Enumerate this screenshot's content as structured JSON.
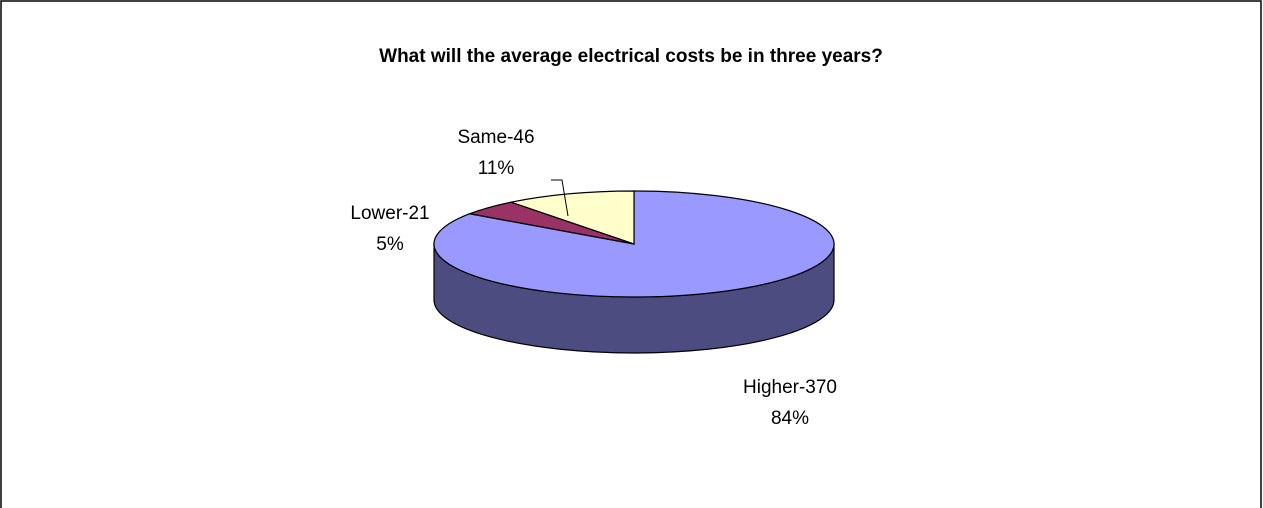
{
  "chart_data": {
    "type": "pie",
    "title": "What will the average electrical costs be in three years?",
    "slices": [
      {
        "category": "Higher",
        "count": 370,
        "percent": 84,
        "label": "Higher-370",
        "pct_label": "84%",
        "color": "#9999FF",
        "side_color": "#4C4C80"
      },
      {
        "category": "Lower",
        "count": 21,
        "percent": 5,
        "label": "Lower-21",
        "pct_label": "5%",
        "color": "#993366",
        "side_color": "#4D1A33"
      },
      {
        "category": "Same",
        "count": 46,
        "percent": 11,
        "label": "Same-46",
        "pct_label": "11%",
        "color": "#FFFFCC",
        "side_color": "#808066"
      }
    ],
    "legend": "none",
    "style": "3d-pie"
  }
}
